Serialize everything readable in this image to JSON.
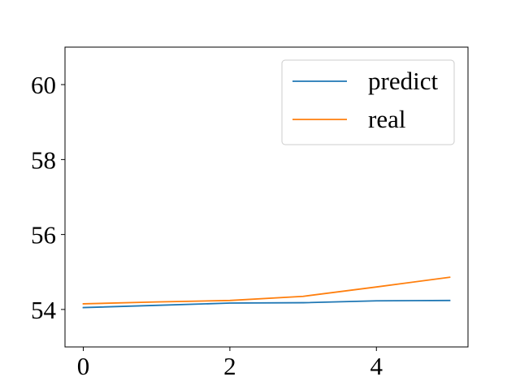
{
  "chart_data": {
    "type": "line",
    "x": [
      0,
      1,
      2,
      3,
      4,
      5
    ],
    "series": [
      {
        "name": "predict",
        "color": "#1f77b4",
        "values": [
          54.05,
          54.11,
          54.17,
          54.18,
          54.23,
          54.24
        ]
      },
      {
        "name": "real",
        "color": "#ff7f0e",
        "values": [
          54.15,
          54.2,
          54.24,
          54.35,
          54.6,
          54.86
        ]
      }
    ],
    "xticks": [
      0,
      2,
      4
    ],
    "yticks": [
      54,
      56,
      58,
      60
    ],
    "xlim": [
      -0.25,
      5.25
    ],
    "ylim": [
      53.0,
      61.0
    ],
    "legend_position": "top-right",
    "grid": false
  }
}
